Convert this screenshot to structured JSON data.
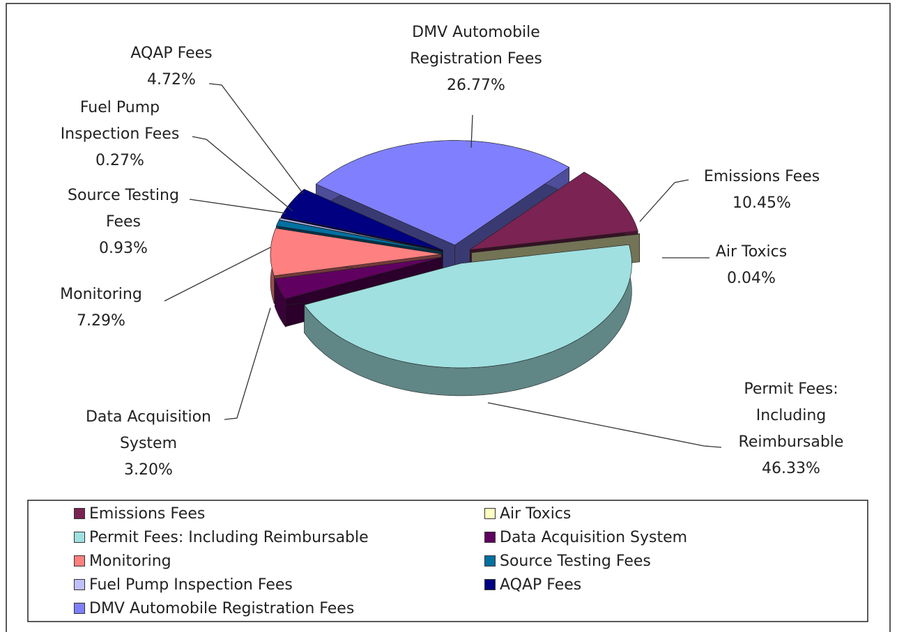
{
  "chart_data": {
    "type": "pie",
    "categories": [
      "Emissions Fees",
      "Air Toxics",
      "Permit Fees: Including Reimbursable",
      "Data Acquisition System",
      "Monitoring",
      "Source Testing Fees",
      "Fuel Pump Inspection Fees",
      "AQAP Fees",
      "DMV Automobile Registration Fees"
    ],
    "values": [
      10.45,
      0.04,
      46.33,
      3.2,
      7.29,
      0.93,
      0.27,
      4.72,
      26.77
    ],
    "value_labels": [
      "10.45%",
      "0.04%",
      "46.33%",
      "3.20%",
      "7.29%",
      "0.93%",
      "0.27%",
      "4.72%",
      "26.77%"
    ],
    "colors": [
      "#7b2352",
      "#ffffc0",
      "#a0e0e0",
      "#600060",
      "#ff8080",
      "#0070a0",
      "#c0c0ff",
      "#000080",
      "#8080ff"
    ],
    "legend": "bottom"
  }
}
